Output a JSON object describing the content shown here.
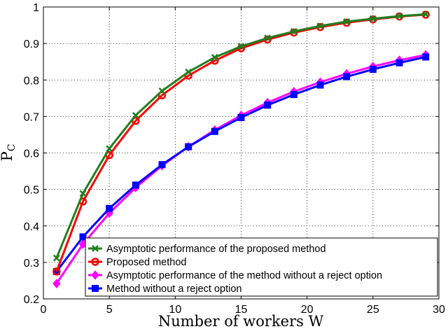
{
  "chart_data": {
    "type": "line",
    "xlabel": "Number of workers W",
    "ylabel": "P",
    "ylabel_subscript": "C",
    "xlim": [
      0,
      30
    ],
    "ylim": [
      0.2,
      1
    ],
    "xticks": [
      0,
      5,
      10,
      15,
      20,
      25,
      30
    ],
    "yticks": [
      0.2,
      0.3,
      0.4,
      0.5,
      0.6,
      0.7,
      0.8,
      0.9,
      1
    ],
    "ytick_labels": [
      "0.2",
      "0.3",
      "0.4",
      "0.5",
      "0.6",
      "0.7",
      "0.8",
      "0.9",
      "1"
    ],
    "grid": true,
    "legend_position": "bottom-right",
    "x": [
      1,
      3,
      5,
      7,
      9,
      11,
      13,
      15,
      17,
      19,
      21,
      23,
      25,
      27,
      29
    ],
    "series": [
      {
        "name": "Asymptotic performance of the proposed method",
        "color": "#1f7f1f",
        "marker": "x",
        "values": [
          0.312,
          0.489,
          0.612,
          0.703,
          0.77,
          0.822,
          0.862,
          0.892,
          0.915,
          0.933,
          0.948,
          0.96,
          0.968,
          0.975,
          0.98
        ]
      },
      {
        "name": "Proposed method",
        "color": "#ff0000",
        "marker": "circle",
        "values": [
          0.275,
          0.467,
          0.594,
          0.688,
          0.758,
          0.812,
          0.853,
          0.887,
          0.911,
          0.93,
          0.945,
          0.957,
          0.966,
          0.974,
          0.979
        ]
      },
      {
        "name": "Asymptotic performance of the method without a reject option",
        "color": "#ff00ff",
        "marker": "diamond",
        "values": [
          0.242,
          0.35,
          0.435,
          0.505,
          0.565,
          0.617,
          0.663,
          0.703,
          0.738,
          0.768,
          0.794,
          0.817,
          0.837,
          0.854,
          0.869
        ]
      },
      {
        "name": "Method without a reject option",
        "color": "#0000ff",
        "marker": "square",
        "values": [
          0.275,
          0.37,
          0.448,
          0.512,
          0.568,
          0.617,
          0.659,
          0.697,
          0.731,
          0.76,
          0.786,
          0.809,
          0.829,
          0.847,
          0.863
        ]
      }
    ]
  }
}
